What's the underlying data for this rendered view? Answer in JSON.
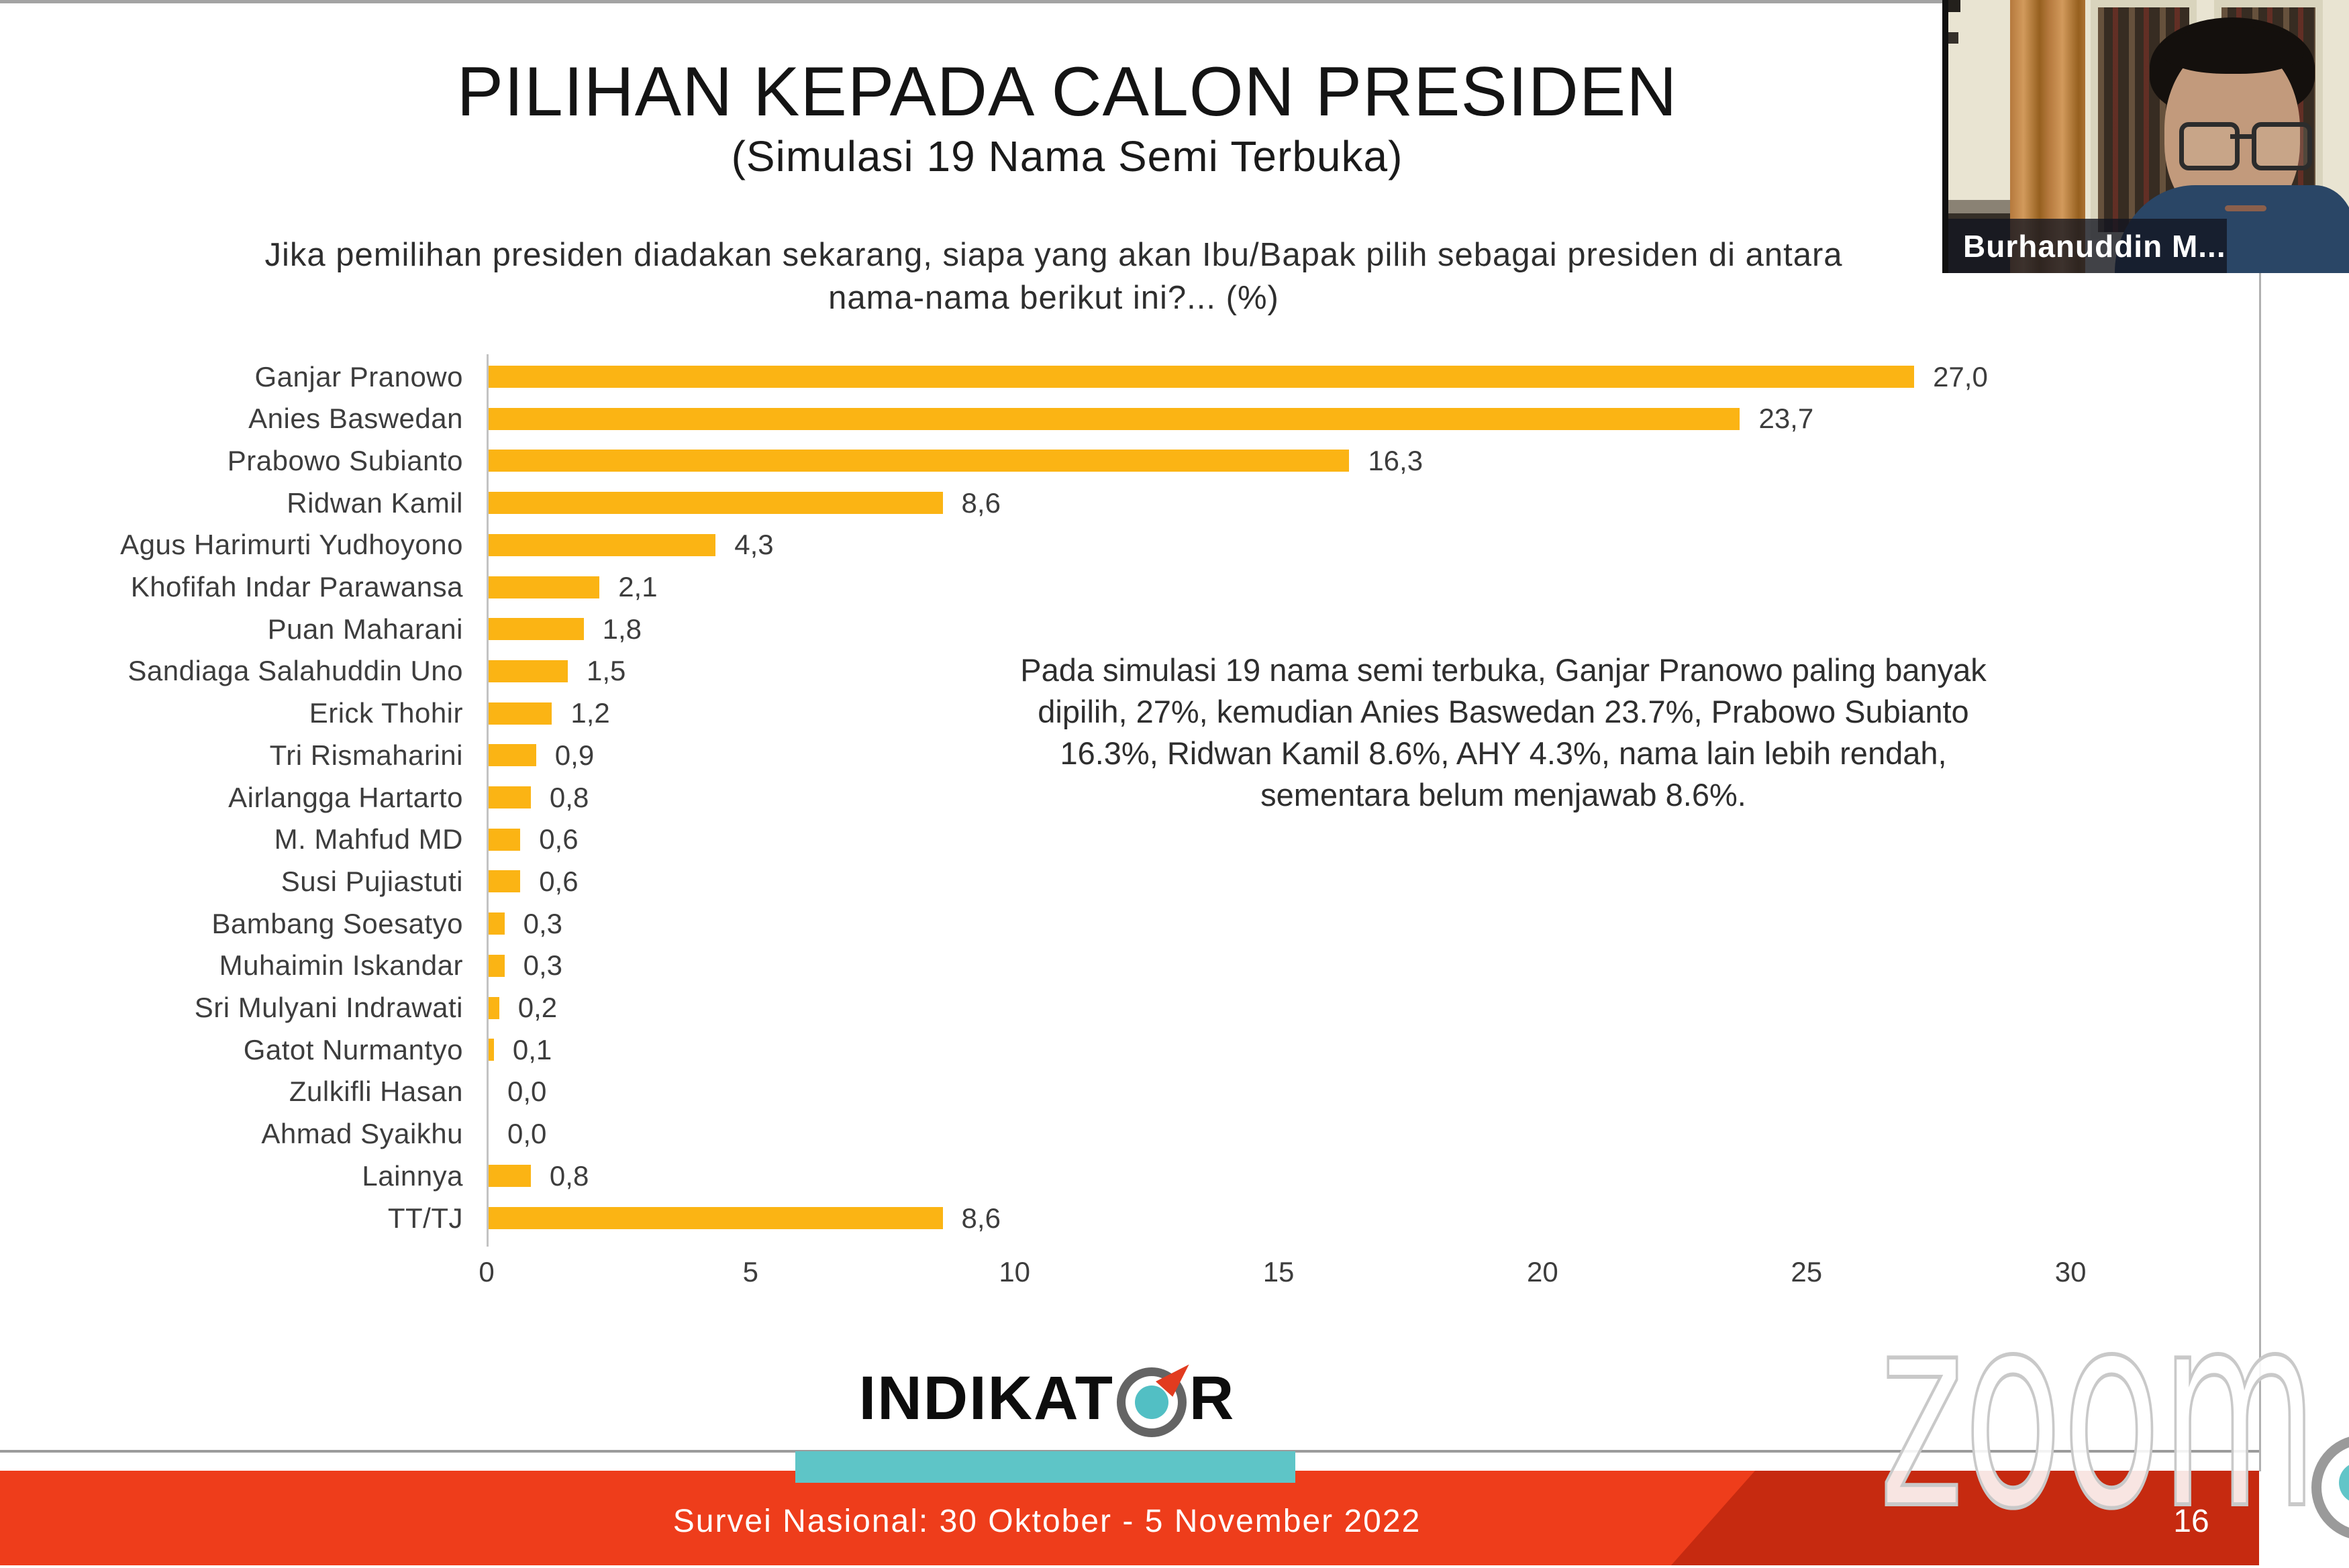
{
  "slide": {
    "title": "PILIHAN KEPADA CALON PRESIDEN",
    "subtitle": "(Simulasi 19 Nama Semi Terbuka)",
    "question_line1": "Jika pemilihan presiden diadakan sekarang, siapa yang akan Ibu/Bapak pilih sebagai presiden di antara",
    "question_line2": "nama-nama berikut ini?... (%)",
    "annotation_lines": [
      "Pada simulasi 19 nama semi terbuka, Ganjar Pranowo paling banyak",
      "dipilih, 27%, kemudian Anies Baswedan 23.7%, Prabowo Subianto",
      "16.3%, Ridwan Kamil 8.6%, AHY 4.3%, nama lain lebih rendah,",
      "sementara belum menjawab 8.6%."
    ],
    "logo": {
      "text_before_o": "INDIKAT",
      "text_after_o": "R",
      "o_icon": "compass-ring-icon",
      "ring_color": "#646464",
      "core_color": "#52bfc4",
      "arrow_color": "#e23b1f"
    },
    "footer": {
      "survey_period": "Survei Nasional: 30 Oktober - 5 November 2022",
      "page_number": "16",
      "band_color": "#ee3d1b",
      "band_dark_color": "#c62a10",
      "underline_color": "#5ec5c7"
    }
  },
  "chart_data": {
    "type": "bar",
    "orientation": "horizontal",
    "title": "",
    "xlabel": "",
    "ylabel": "",
    "xlim": [
      0,
      30
    ],
    "xticks": [
      0,
      5,
      10,
      15,
      20,
      25,
      30
    ],
    "grid": false,
    "legend": "none",
    "bar_color": "#fbb414",
    "categories": [
      "Ganjar Pranowo",
      "Anies Baswedan",
      "Prabowo Subianto",
      "Ridwan Kamil",
      "Agus Harimurti Yudhoyono",
      "Khofifah Indar Parawansa",
      "Puan Maharani",
      "Sandiaga Salahuddin Uno",
      "Erick Thohir",
      "Tri Rismaharini",
      "Airlangga Hartarto",
      "M. Mahfud MD",
      "Susi Pujiastuti",
      "Bambang Soesatyo",
      "Muhaimin Iskandar",
      "Sri Mulyani Indrawati",
      "Gatot Nurmantyo",
      "Zulkifli Hasan",
      "Ahmad Syaikhu",
      "Lainnya",
      "TT/TJ"
    ],
    "values": [
      27.0,
      23.7,
      16.3,
      8.6,
      4.3,
      2.1,
      1.8,
      1.5,
      1.2,
      0.9,
      0.8,
      0.6,
      0.6,
      0.3,
      0.3,
      0.2,
      0.1,
      0.0,
      0.0,
      0.8,
      8.6
    ],
    "value_labels": [
      "27,0",
      "23,7",
      "16,3",
      "8,6",
      "4,3",
      "2,1",
      "1,8",
      "1,5",
      "1,2",
      "0,9",
      "0,8",
      "0,6",
      "0,6",
      "0,3",
      "0,3",
      "0,2",
      "0,1",
      "0,0",
      "0,0",
      "0,8",
      "8,6"
    ]
  },
  "video_overlay": {
    "participant_name": "Burhanuddin M...",
    "shirt_color": "#2a4666",
    "background": "bookshelf-and-curtain"
  },
  "watermark": {
    "text": "zoom"
  }
}
